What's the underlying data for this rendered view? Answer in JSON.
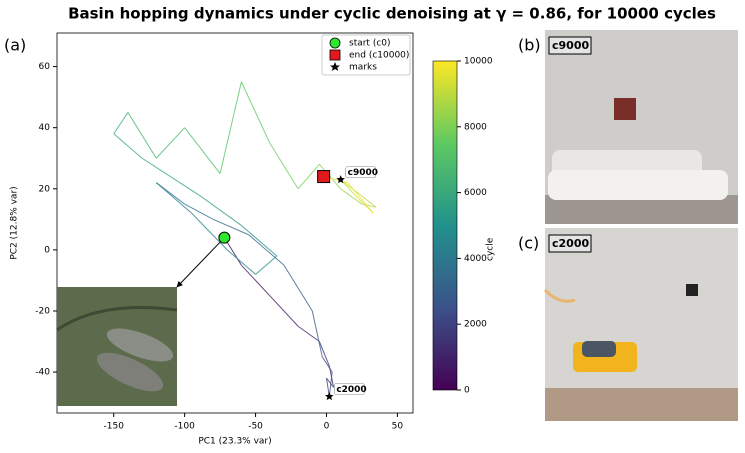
{
  "chart_data": {
    "type": "line",
    "title": "Basin hopping dynamics under cyclic denoising at γ = 0.86, for 10000 cycles",
    "panel_label": "(a)",
    "x_label": "PC1 (23.3% var)",
    "y_label": "PC2 (12.8% var)",
    "xlim": [
      -190,
      61
    ],
    "ylim": [
      -53.4,
      71
    ],
    "xticks": [
      -150,
      -100,
      -50,
      0,
      50
    ],
    "yticks": [
      -40,
      -20,
      0,
      20,
      40,
      60
    ],
    "colormap": "viridis",
    "colorbar_label": "cycle",
    "clim": [
      0,
      10000
    ],
    "cticks": [
      0,
      2000,
      4000,
      6000,
      8000,
      10000
    ],
    "series": [
      {
        "name": "trajectory",
        "cycle": [
          0,
          250,
          500,
          750,
          1000,
          1250,
          1500,
          1750,
          2000,
          2250,
          2500,
          2750,
          3000,
          3250,
          3500,
          3750,
          4000,
          4250,
          4500,
          4750,
          5000,
          5250,
          5500,
          5750,
          6000,
          6250,
          6500,
          6750,
          7000,
          7250,
          7500,
          7750,
          8000,
          8250,
          8500,
          8750,
          9000,
          9250,
          9500,
          9750,
          10000
        ],
        "x": [
          -72,
          -60,
          -40,
          -20,
          -5,
          2,
          5,
          0,
          2,
          4,
          -3,
          -10,
          -30,
          -55,
          -80,
          -100,
          -120,
          -95,
          -70,
          -50,
          -35,
          -60,
          -90,
          -130,
          -150,
          -140,
          -120,
          -100,
          -75,
          -60,
          -40,
          -20,
          -5,
          10,
          25,
          35,
          10,
          20,
          33,
          15,
          -2
        ],
        "y": [
          4,
          -5,
          -15,
          -25,
          -30,
          -38,
          -45,
          -42,
          -48,
          -40,
          -35,
          -20,
          -5,
          5,
          10,
          15,
          22,
          12,
          0,
          -8,
          -2,
          8,
          18,
          30,
          38,
          45,
          30,
          40,
          25,
          55,
          35,
          20,
          28,
          20,
          15,
          14,
          23,
          18,
          12,
          22,
          24
        ]
      }
    ],
    "legend": [
      "start (c0)",
      "end (c10000)",
      "marks"
    ],
    "annotations": [
      {
        "text": "c9000",
        "x": 10,
        "y": 23
      },
      {
        "text": "c2000",
        "x": 2,
        "y": -48
      }
    ],
    "images": [
      {
        "label": "(b)",
        "caption": "c9000"
      },
      {
        "label": "(c)",
        "caption": "c2000"
      }
    ]
  }
}
